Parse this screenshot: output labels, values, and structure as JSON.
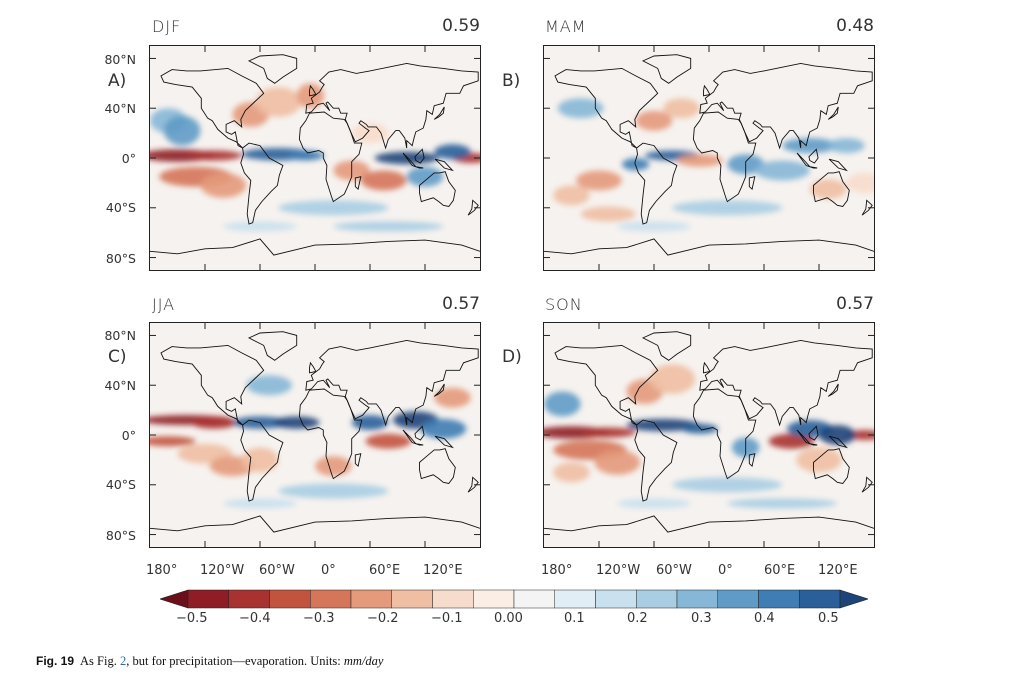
{
  "panels": [
    {
      "season": "DJF",
      "corr": "0.59",
      "label": "A)"
    },
    {
      "season": "MAM",
      "corr": "0.48",
      "label": "B)"
    },
    {
      "season": "JJA",
      "corr": "0.57",
      "label": "C)"
    },
    {
      "season": "SON",
      "corr": "0.57",
      "label": "D)"
    }
  ],
  "lat_labels": [
    "80°N",
    "40°N",
    "0°",
    "40°S",
    "80°S"
  ],
  "lon_labels": [
    "180°",
    "120°W",
    "60°W",
    "0°",
    "60°E",
    "120°E"
  ],
  "colorbar": {
    "labels": [
      "−0.5",
      "−0.4",
      "−0.3",
      "−0.2",
      "−0.1",
      "0.00",
      "0.1",
      "0.2",
      "0.3",
      "0.4",
      "0.5"
    ],
    "colors": [
      "#6b0f1a",
      "#8e1d25",
      "#a8322f",
      "#c2533f",
      "#d5765a",
      "#e49a7b",
      "#f0bfa3",
      "#f8dccb",
      "#fbeee4",
      "#f4f4f4",
      "#e2eef6",
      "#c9e0ee",
      "#a9cde3",
      "#86b7d7",
      "#5f9bc6",
      "#3f7db4",
      "#2a5f9a",
      "#1c4479"
    ]
  },
  "caption": {
    "fig_number": "Fig. 19",
    "text_before": "As Fig. ",
    "ref": "2",
    "text_after": ", but for precipitation—evaporation. Units: ",
    "units": "mm/day"
  }
}
